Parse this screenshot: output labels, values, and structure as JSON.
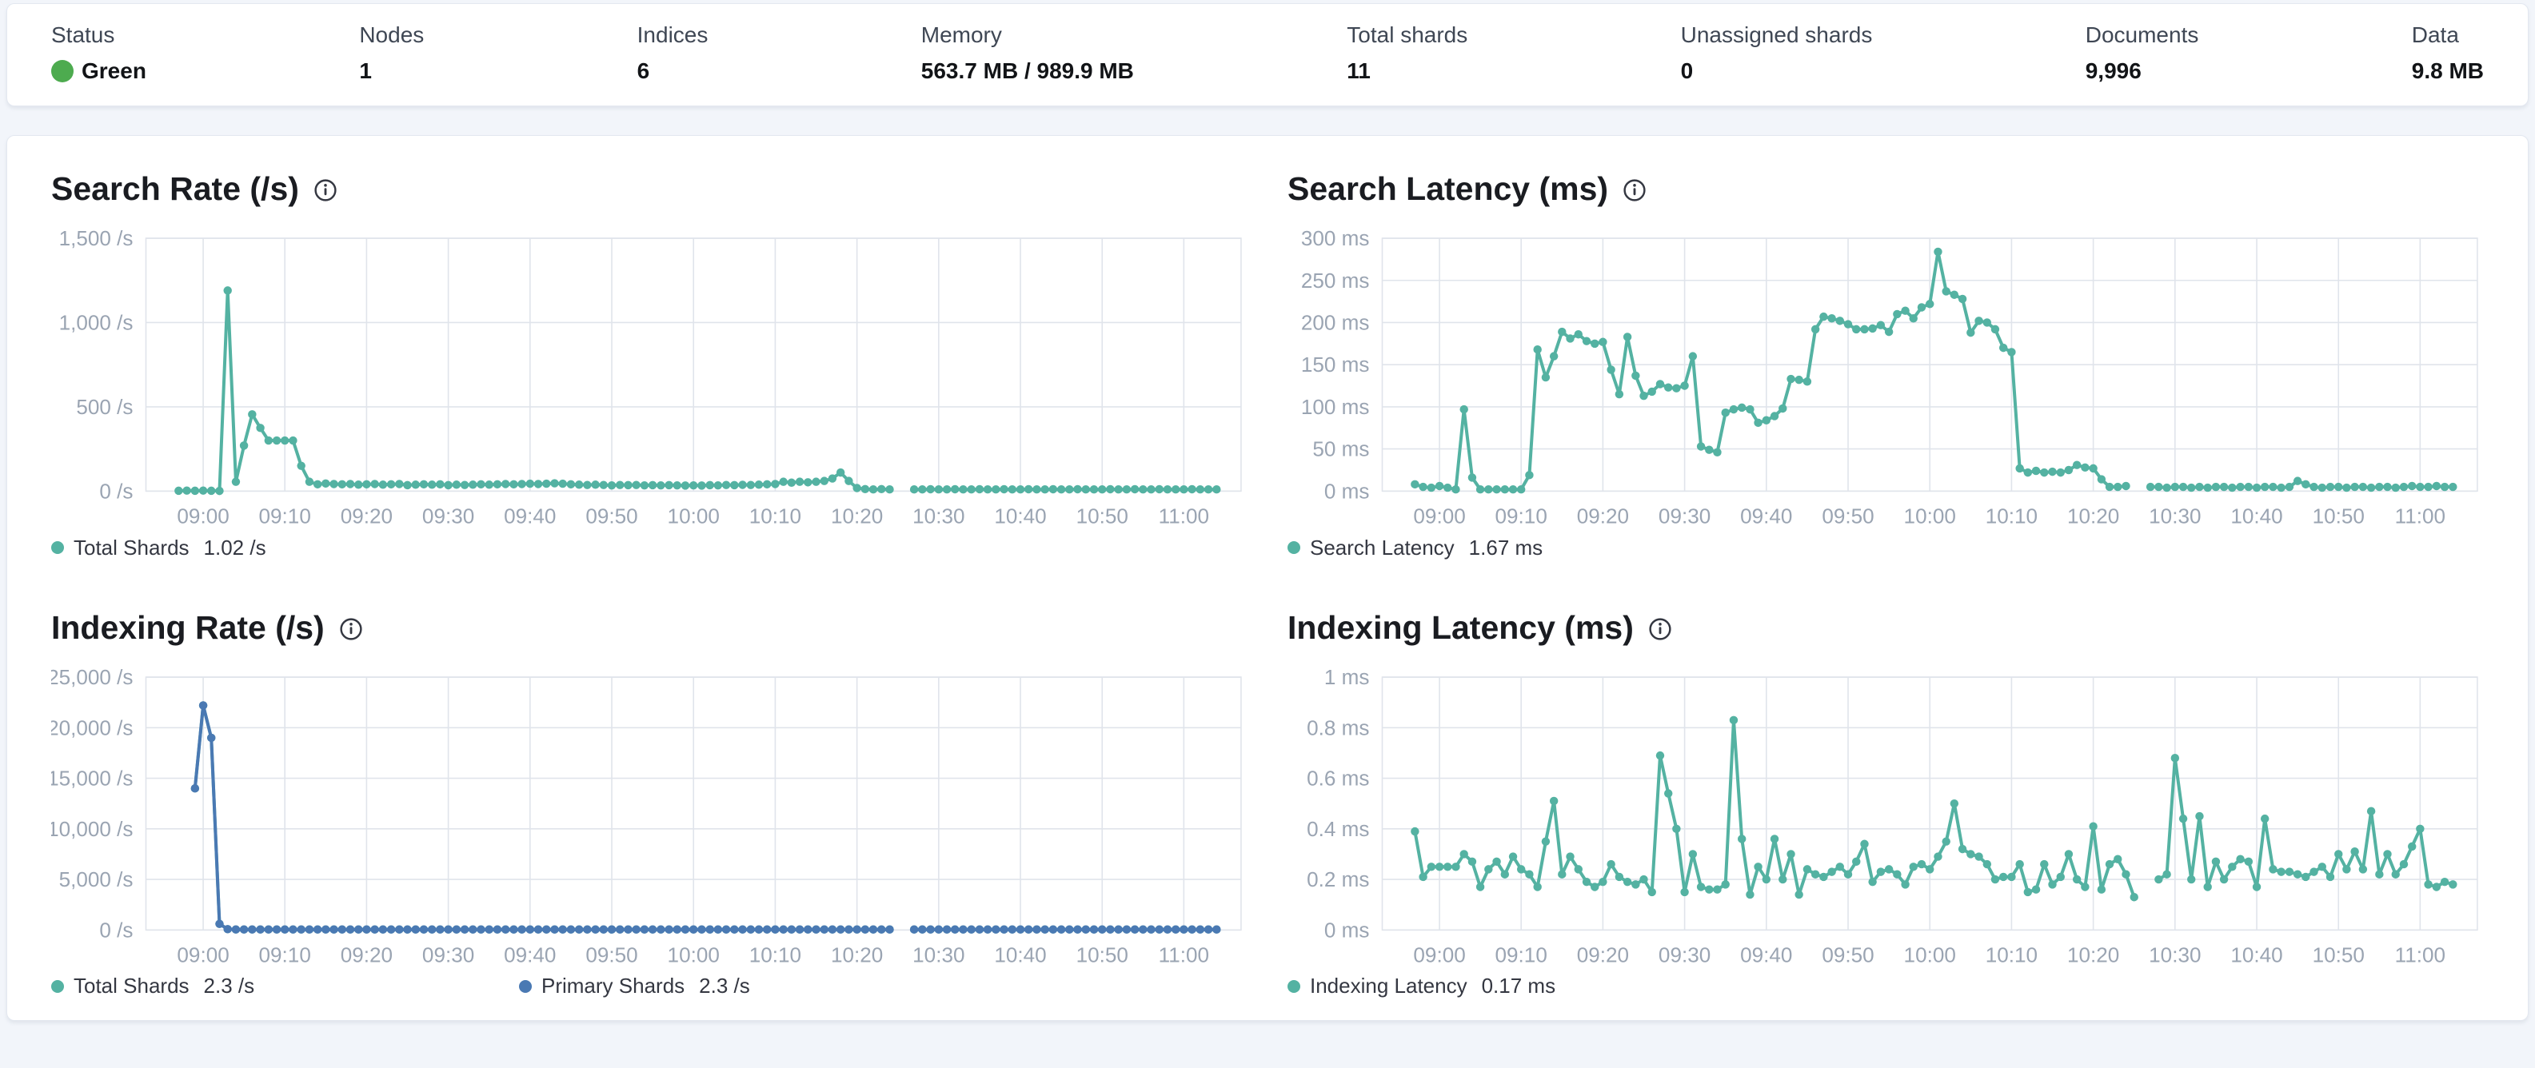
{
  "header_stats": {
    "items": [
      {
        "label": "Status",
        "value": "Green",
        "status_color": "#4DAB4F"
      },
      {
        "label": "Nodes",
        "value": "1"
      },
      {
        "label": "Indices",
        "value": "6"
      },
      {
        "label": "Memory",
        "value": "563.7 MB / 989.9 MB"
      },
      {
        "label": "Total shards",
        "value": "11"
      },
      {
        "label": "Unassigned shards",
        "value": "0"
      },
      {
        "label": "Documents",
        "value": "9,996"
      },
      {
        "label": "Data",
        "value": "9.8 MB"
      }
    ]
  },
  "colors": {
    "teal": "#54B2A2",
    "blue": "#4A79B3",
    "green": "#4DAB4F"
  },
  "chart_data": [
    {
      "type": "line",
      "title": "Search Rate (/s)",
      "ylabel": "/s",
      "y_max": 1500,
      "y_ticks": [
        {
          "v": 0,
          "label": "0 /s"
        },
        {
          "v": 500,
          "label": "500 /s"
        },
        {
          "v": 1000,
          "label": "1,000 /s"
        },
        {
          "v": 1500,
          "label": "1,500 /s"
        }
      ],
      "x_domain": [
        -4,
        130
      ],
      "x_start_time": "08:57",
      "x_step_minutes": 1,
      "x_tick_minutes": [
        3,
        13,
        23,
        33,
        43,
        53,
        63,
        73,
        83,
        93,
        103,
        113,
        123
      ],
      "x_tick_labels": [
        "09:00",
        "09:10",
        "09:20",
        "09:30",
        "09:40",
        "09:50",
        "10:00",
        "10:10",
        "10:20",
        "10:30",
        "10:40",
        "10:50",
        "11:00"
      ],
      "grid": true,
      "legend_position": "bottom",
      "series": [
        {
          "name": "Total Shards",
          "color": "#54B2A2",
          "legend_value": "1.02 /s",
          "values": [
            2,
            3,
            2,
            3,
            2,
            1,
            1190,
            55,
            270,
            455,
            375,
            300,
            300,
            300,
            300,
            150,
            55,
            40,
            45,
            42,
            40,
            42,
            38,
            40,
            42,
            38,
            40,
            42,
            35,
            38,
            40,
            38,
            40,
            35,
            38,
            36,
            38,
            40,
            38,
            40,
            42,
            40,
            42,
            44,
            42,
            44,
            46,
            44,
            40,
            38,
            36,
            38,
            36,
            34,
            36,
            35,
            36,
            34,
            35,
            34,
            35,
            34,
            33,
            34,
            33,
            35,
            34,
            36,
            35,
            37,
            36,
            38,
            40,
            42,
            55,
            50,
            55,
            52,
            55,
            60,
            75,
            110,
            60,
            18,
            12,
            10,
            12,
            10,
            null,
            null,
            10,
            10,
            11,
            10,
            10,
            11,
            10,
            10,
            11,
            10,
            10,
            11,
            10,
            10,
            11,
            10,
            10,
            11,
            10,
            10,
            11,
            10,
            10,
            10,
            11,
            10,
            10,
            11,
            10,
            10,
            11,
            10,
            10,
            10,
            11,
            10,
            10,
            10
          ]
        }
      ]
    },
    {
      "type": "line",
      "title": "Search Latency (ms)",
      "ylabel": "ms",
      "y_max": 300,
      "y_ticks": [
        {
          "v": 0,
          "label": "0 ms"
        },
        {
          "v": 50,
          "label": "50 ms"
        },
        {
          "v": 100,
          "label": "100 ms"
        },
        {
          "v": 150,
          "label": "150 ms"
        },
        {
          "v": 200,
          "label": "200 ms"
        },
        {
          "v": 250,
          "label": "250 ms"
        },
        {
          "v": 300,
          "label": "300 ms"
        }
      ],
      "x_domain": [
        -4,
        130
      ],
      "x_start_time": "08:57",
      "x_step_minutes": 1,
      "x_tick_minutes": [
        3,
        13,
        23,
        33,
        43,
        53,
        63,
        73,
        83,
        93,
        103,
        113,
        123
      ],
      "x_tick_labels": [
        "09:00",
        "09:10",
        "09:20",
        "09:30",
        "09:40",
        "09:50",
        "10:00",
        "10:10",
        "10:20",
        "10:30",
        "10:40",
        "10:50",
        "11:00"
      ],
      "grid": true,
      "legend_position": "bottom",
      "series": [
        {
          "name": "Search Latency",
          "color": "#54B2A2",
          "legend_value": "1.67 ms",
          "values": [
            8,
            5,
            4,
            6,
            4,
            2,
            97,
            16,
            2,
            2,
            2,
            2,
            2,
            2,
            19,
            168,
            135,
            160,
            189,
            181,
            186,
            178,
            175,
            177,
            144,
            115,
            183,
            137,
            113,
            118,
            127,
            123,
            122,
            125,
            160,
            53,
            49,
            46,
            93,
            97,
            99,
            97,
            81,
            84,
            89,
            98,
            133,
            132,
            130,
            192,
            207,
            205,
            202,
            198,
            192,
            192,
            193,
            197,
            189,
            210,
            214,
            205,
            218,
            222,
            284,
            237,
            233,
            228,
            188,
            202,
            200,
            192,
            170,
            165,
            27,
            22,
            24,
            22,
            23,
            22,
            25,
            31,
            28,
            27,
            14,
            5,
            5,
            6,
            null,
            null,
            5,
            5,
            4,
            5,
            5,
            4,
            5,
            4,
            5,
            5,
            4,
            5,
            5,
            4,
            5,
            5,
            4,
            5,
            12,
            8,
            5,
            4,
            5,
            5,
            4,
            5,
            5,
            4,
            5,
            5,
            4,
            5,
            6,
            5,
            5,
            6,
            5,
            5
          ]
        }
      ]
    },
    {
      "type": "line",
      "title": "Indexing Rate (/s)",
      "ylabel": "/s",
      "y_max": 25000,
      "y_ticks": [
        {
          "v": 0,
          "label": "0 /s"
        },
        {
          "v": 5000,
          "label": "5,000 /s"
        },
        {
          "v": 10000,
          "label": "10,000 /s"
        },
        {
          "v": 15000,
          "label": "15,000 /s"
        },
        {
          "v": 20000,
          "label": "20,000 /s"
        },
        {
          "v": 25000,
          "label": "25,000 /s"
        }
      ],
      "x_domain": [
        -4,
        130
      ],
      "x_start_time": "08:57",
      "x_step_minutes": 1,
      "x_tick_minutes": [
        3,
        13,
        23,
        33,
        43,
        53,
        63,
        73,
        83,
        93,
        103,
        113,
        123
      ],
      "x_tick_labels": [
        "09:00",
        "09:10",
        "09:20",
        "09:30",
        "09:40",
        "09:50",
        "10:00",
        "10:10",
        "10:20",
        "10:30",
        "10:40",
        "10:50",
        "11:00"
      ],
      "grid": true,
      "legend_position": "bottom",
      "series": [
        {
          "name": "Total Shards",
          "color": "#54B2A2",
          "legend_value": "2.3 /s",
          "values": [
            null,
            null,
            14000,
            22200,
            19000,
            600,
            80,
            50,
            50,
            50,
            50,
            50,
            50,
            50,
            50,
            50,
            50,
            50,
            50,
            50,
            50,
            50,
            50,
            50,
            50,
            50,
            50,
            50,
            50,
            50,
            50,
            50,
            50,
            50,
            50,
            50,
            50,
            50,
            50,
            50,
            50,
            50,
            50,
            50,
            50,
            50,
            50,
            50,
            50,
            50,
            50,
            50,
            50,
            50,
            50,
            50,
            50,
            50,
            50,
            50,
            50,
            50,
            50,
            50,
            50,
            50,
            50,
            50,
            50,
            50,
            50,
            50,
            50,
            50,
            50,
            50,
            50,
            50,
            50,
            50,
            50,
            50,
            50,
            50,
            50,
            50,
            50,
            50,
            null,
            null,
            50,
            50,
            50,
            50,
            50,
            50,
            50,
            50,
            50,
            50,
            50,
            50,
            50,
            50,
            50,
            50,
            50,
            50,
            50,
            50,
            50,
            50,
            50,
            50,
            50,
            50,
            50,
            50,
            50,
            50,
            50,
            50,
            50,
            50,
            50,
            50,
            50,
            50
          ]
        },
        {
          "name": "Primary Shards",
          "color": "#4A79B3",
          "legend_value": "2.3 /s",
          "values": [
            null,
            null,
            14000,
            22200,
            19000,
            600,
            80,
            50,
            50,
            50,
            50,
            50,
            50,
            50,
            50,
            50,
            50,
            50,
            50,
            50,
            50,
            50,
            50,
            50,
            50,
            50,
            50,
            50,
            50,
            50,
            50,
            50,
            50,
            50,
            50,
            50,
            50,
            50,
            50,
            50,
            50,
            50,
            50,
            50,
            50,
            50,
            50,
            50,
            50,
            50,
            50,
            50,
            50,
            50,
            50,
            50,
            50,
            50,
            50,
            50,
            50,
            50,
            50,
            50,
            50,
            50,
            50,
            50,
            50,
            50,
            50,
            50,
            50,
            50,
            50,
            50,
            50,
            50,
            50,
            50,
            50,
            50,
            50,
            50,
            50,
            50,
            50,
            50,
            null,
            null,
            50,
            50,
            50,
            50,
            50,
            50,
            50,
            50,
            50,
            50,
            50,
            50,
            50,
            50,
            50,
            50,
            50,
            50,
            50,
            50,
            50,
            50,
            50,
            50,
            50,
            50,
            50,
            50,
            50,
            50,
            50,
            50,
            50,
            50,
            50,
            50,
            50,
            50
          ]
        }
      ]
    },
    {
      "type": "line",
      "title": "Indexing Latency (ms)",
      "ylabel": "ms",
      "y_max": 1,
      "y_ticks": [
        {
          "v": 0,
          "label": "0 ms"
        },
        {
          "v": 0.2,
          "label": "0.2 ms"
        },
        {
          "v": 0.4,
          "label": "0.4 ms"
        },
        {
          "v": 0.6,
          "label": "0.6 ms"
        },
        {
          "v": 0.8,
          "label": "0.8 ms"
        },
        {
          "v": 1,
          "label": "1 ms"
        }
      ],
      "x_domain": [
        -4,
        130
      ],
      "x_start_time": "08:57",
      "x_step_minutes": 1,
      "x_tick_minutes": [
        3,
        13,
        23,
        33,
        43,
        53,
        63,
        73,
        83,
        93,
        103,
        113,
        123
      ],
      "x_tick_labels": [
        "09:00",
        "09:10",
        "09:20",
        "09:30",
        "09:40",
        "09:50",
        "10:00",
        "10:10",
        "10:20",
        "10:30",
        "10:40",
        "10:50",
        "11:00"
      ],
      "grid": true,
      "legend_position": "bottom",
      "series": [
        {
          "name": "Indexing Latency",
          "color": "#54B2A2",
          "legend_value": "0.17 ms",
          "values": [
            0.39,
            0.21,
            0.25,
            0.25,
            0.25,
            0.25,
            0.3,
            0.27,
            0.17,
            0.24,
            0.27,
            0.22,
            0.29,
            0.24,
            0.22,
            0.17,
            0.35,
            0.51,
            0.22,
            0.29,
            0.24,
            0.19,
            0.17,
            0.19,
            0.26,
            0.21,
            0.19,
            0.18,
            0.2,
            0.15,
            0.69,
            0.54,
            0.4,
            0.15,
            0.3,
            0.17,
            0.16,
            0.16,
            0.18,
            0.83,
            0.36,
            0.14,
            0.25,
            0.2,
            0.36,
            0.2,
            0.3,
            0.14,
            0.24,
            0.22,
            0.21,
            0.23,
            0.25,
            0.22,
            0.27,
            0.34,
            0.19,
            0.23,
            0.24,
            0.22,
            0.18,
            0.25,
            0.26,
            0.24,
            0.29,
            0.35,
            0.5,
            0.32,
            0.3,
            0.29,
            0.26,
            0.2,
            0.21,
            0.21,
            0.26,
            0.15,
            0.16,
            0.26,
            0.18,
            0.21,
            0.3,
            0.2,
            0.17,
            0.41,
            0.16,
            0.26,
            0.28,
            0.22,
            0.13,
            null,
            null,
            0.2,
            0.22,
            0.68,
            0.44,
            0.2,
            0.45,
            0.17,
            0.27,
            0.2,
            0.25,
            0.28,
            0.27,
            0.17,
            0.44,
            0.24,
            0.23,
            0.23,
            0.22,
            0.21,
            0.23,
            0.25,
            0.21,
            0.3,
            0.24,
            0.31,
            0.24,
            0.47,
            0.22,
            0.3,
            0.22,
            0.26,
            0.33,
            0.4,
            0.18,
            0.17,
            0.19,
            0.18
          ]
        }
      ]
    }
  ]
}
